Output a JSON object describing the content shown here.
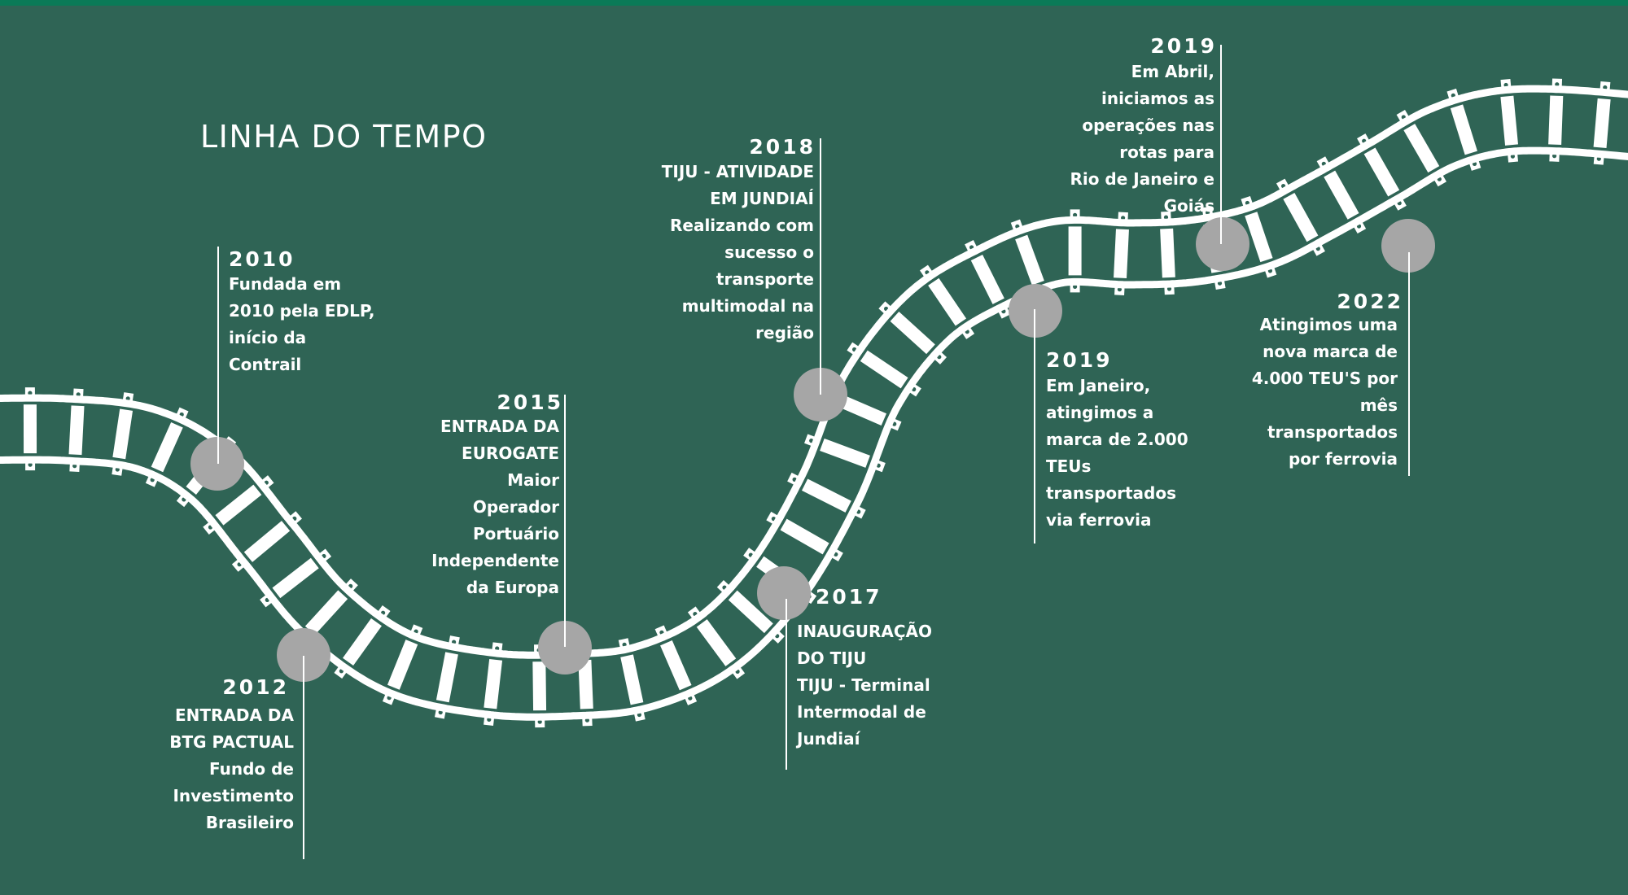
{
  "title": "LINHA DO TEMPO",
  "colors": {
    "background": "#2f6455",
    "top_bar": "#0a7a57",
    "track": "#ffffff",
    "milestone_marker": "#a6a6a6",
    "text": "#ffffff"
  },
  "events": [
    {
      "year": "2010",
      "text": "Fundada em\n2010 pela EDLP,\ninício da\nContrail"
    },
    {
      "year": "2012",
      "text": "ENTRADA DA\nBTG PACTUAL\nFundo de\nInvestimento\nBrasileiro"
    },
    {
      "year": "2015",
      "text": "ENTRADA DA\nEUROGATE\nMaior\nOperador\nPortuário\nIndependente\nda Europa"
    },
    {
      "year": "2017",
      "text": "INAUGURAÇÃO\nDO TIJU\nTIJU - Terminal\nIntermodal de\nJundiaí"
    },
    {
      "year": "2018",
      "text": "TIJU - ATIVIDADE\nEM JUNDIAÍ\nRealizando com\nsucesso o\ntransporte\nmultimodal na\nregião"
    },
    {
      "year": "2019",
      "text": "Em Janeiro,\natingimos a\nmarca de 2.000\nTEUs\ntransportados\nvia ferrovia"
    },
    {
      "year": "2019",
      "text": "Em Abril,\niniciamos as\noperações nas\nrotas para\nRio de Janeiro e\nGoiás"
    },
    {
      "year": "2022",
      "text": "Atingimos uma\nnova marca de\n4.000 TEU'S por\nmês\ntransportados\npor ferrovia"
    }
  ]
}
